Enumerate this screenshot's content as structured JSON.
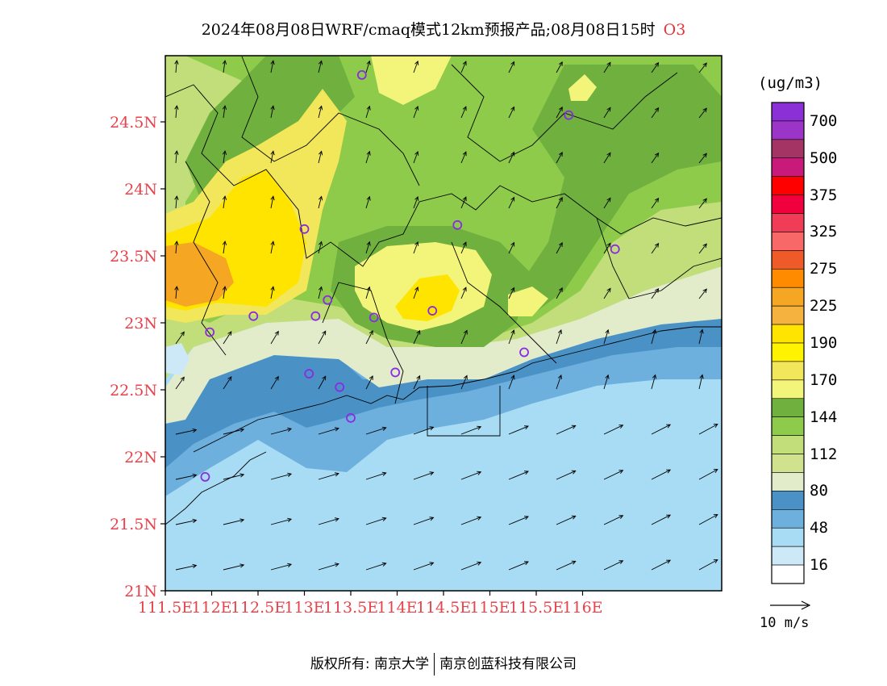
{
  "title": {
    "text": "2024年08月08日WRF/cmaq模式12km预报产品;08月08日15时",
    "species": "O3"
  },
  "footer": {
    "left": "版权所有: 南京大学",
    "right": "南京创蓝科技有限公司"
  },
  "colors": {
    "axis_label": "#e8424a",
    "site_marker": "#8a2be2"
  },
  "axes": {
    "lat_ticks": [
      "24.5N",
      "24N",
      "23.5N",
      "23N",
      "22.5N",
      "22N",
      "21.5N",
      "21N"
    ],
    "lon_ticks": [
      "111.5E",
      "112E",
      "112.5E",
      "113E",
      "113.5E",
      "114E",
      "114.5E",
      "115E",
      "115.5E",
      "116E"
    ]
  },
  "legend": {
    "units": "(ug/m3)",
    "bins": [
      {
        "color": "#8b2fd6"
      },
      {
        "color": "#9b35c8"
      },
      {
        "color": "#a33463"
      },
      {
        "color": "#c81a7a"
      },
      {
        "color": "#ff0000"
      },
      {
        "color": "#f0003c"
      },
      {
        "color": "#f03c56"
      },
      {
        "color": "#f96868"
      },
      {
        "color": "#ef5a28"
      },
      {
        "color": "#ff8c00"
      },
      {
        "color": "#f5a623"
      },
      {
        "color": "#f6b23f"
      },
      {
        "color": "#ffe400"
      },
      {
        "color": "#fff300"
      },
      {
        "color": "#f2e65a"
      },
      {
        "color": "#f3f57a"
      },
      {
        "color": "#6fb03e"
      },
      {
        "color": "#8fcb4a"
      },
      {
        "color": "#c2de7a"
      },
      {
        "color": "#d0e28e"
      },
      {
        "color": "#e2eccb"
      },
      {
        "color": "#4a92c6"
      },
      {
        "color": "#6db0de"
      },
      {
        "color": "#a8dcf4"
      },
      {
        "color": "#cde9f8"
      },
      {
        "color": "#ffffff"
      }
    ],
    "labels": [
      "700",
      "500",
      "375",
      "325",
      "275",
      "225",
      "190",
      "170",
      "144",
      "112",
      "80",
      "48",
      "16"
    ],
    "wind_ref": "10 m/s"
  },
  "sites": [
    {
      "lon": 113.62,
      "lat": 24.85
    },
    {
      "lon": 115.85,
      "lat": 24.55
    },
    {
      "lon": 113.0,
      "lat": 23.7
    },
    {
      "lon": 114.65,
      "lat": 23.73
    },
    {
      "lon": 116.35,
      "lat": 23.55
    },
    {
      "lon": 113.25,
      "lat": 23.17
    },
    {
      "lon": 113.12,
      "lat": 23.05
    },
    {
      "lon": 112.45,
      "lat": 23.05
    },
    {
      "lon": 111.98,
      "lat": 22.93
    },
    {
      "lon": 113.75,
      "lat": 23.04
    },
    {
      "lon": 114.38,
      "lat": 23.09
    },
    {
      "lon": 113.05,
      "lat": 22.62
    },
    {
      "lon": 113.38,
      "lat": 22.52
    },
    {
      "lon": 113.5,
      "lat": 22.29
    },
    {
      "lon": 113.98,
      "lat": 22.63
    },
    {
      "lon": 115.37,
      "lat": 22.78
    },
    {
      "lon": 111.93,
      "lat": 21.85
    }
  ]
}
